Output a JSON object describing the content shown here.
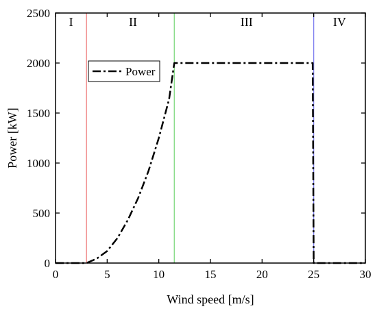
{
  "chart_data": {
    "type": "line",
    "title": "",
    "xlabel": "Wind speed [m/s]",
    "ylabel": "Power [kW]",
    "xlim": [
      0,
      30
    ],
    "ylim": [
      0,
      2500
    ],
    "xticks": [
      0,
      5,
      10,
      15,
      20,
      25,
      30
    ],
    "yticks": [
      0,
      500,
      1000,
      1500,
      2000,
      2500
    ],
    "grid": false,
    "legend_position": "top-left",
    "series": [
      {
        "name": "Power",
        "color": "#000000",
        "line_style": "dash-dot",
        "x": [
          0,
          3,
          4,
          5,
          6,
          7,
          8,
          9,
          10,
          11,
          11.5,
          12,
          15,
          20,
          24.9,
          25,
          25.1,
          30
        ],
        "y": [
          0,
          0,
          45,
          120,
          250,
          430,
          650,
          920,
          1250,
          1640,
          2000,
          2000,
          2000,
          2000,
          2000,
          0,
          0,
          0
        ]
      }
    ],
    "region_boundaries": [
      {
        "x": 3,
        "color": "#f08080"
      },
      {
        "x": 11.5,
        "color": "#7fd97f"
      },
      {
        "x": 25,
        "color": "#8080f0"
      }
    ],
    "region_labels": [
      {
        "label": "I",
        "x": 1.5
      },
      {
        "label": "II",
        "x": 7.5
      },
      {
        "label": "III",
        "x": 18.5
      },
      {
        "label": "IV",
        "x": 27.5
      }
    ]
  }
}
